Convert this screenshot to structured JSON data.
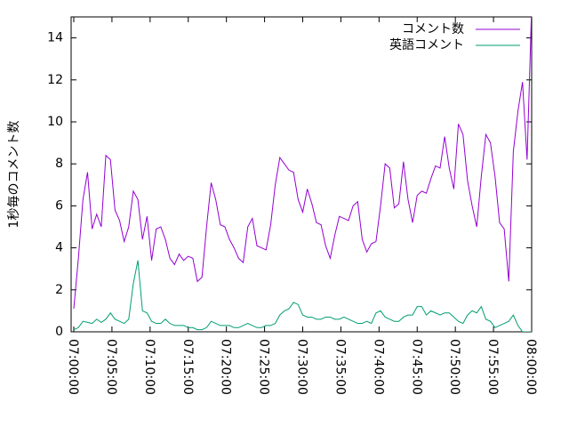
{
  "chart_data": {
    "type": "line",
    "ylabel": "1秒毎のコメント数",
    "x": [
      0,
      0.6,
      1.2,
      1.8,
      2.4,
      3,
      3.6,
      4.2,
      4.8,
      5.4,
      6,
      6.6,
      7.2,
      7.8,
      8.4,
      9,
      9.6,
      10.2,
      10.8,
      11.4,
      12,
      12.6,
      13.2,
      13.8,
      14.4,
      15,
      15.6,
      16.2,
      16.8,
      17.4,
      18,
      18.6,
      19.2,
      19.8,
      20.4,
      21,
      21.6,
      22.2,
      22.8,
      23.4,
      24,
      24.6,
      25.2,
      25.8,
      26.4,
      27,
      27.6,
      28.2,
      28.8,
      29.4,
      30,
      30.6,
      31.2,
      31.8,
      32.4,
      33,
      33.6,
      34.2,
      34.8,
      35.4,
      36,
      36.6,
      37.2,
      37.8,
      38.4,
      39,
      39.6,
      40.2,
      40.8,
      41.4,
      42,
      42.6,
      43.2,
      43.8,
      44.4,
      45,
      45.6,
      46.2,
      46.8,
      47.4,
      48,
      48.6,
      49.2,
      49.8,
      50.4,
      51,
      51.6,
      52.2,
      52.8,
      53.4,
      54,
      54.6,
      55.2,
      55.8,
      56.4,
      57,
      57.6,
      58.2,
      58.8,
      59.4,
      60
    ],
    "series": [
      {
        "name": "コメント数",
        "color": "#9400d3",
        "values": [
          1.1,
          3.5,
          6.3,
          7.6,
          4.9,
          5.6,
          5.0,
          8.4,
          8.2,
          5.8,
          5.3,
          4.3,
          5.0,
          6.7,
          6.3,
          4.4,
          5.5,
          3.4,
          4.9,
          5.0,
          4.4,
          3.5,
          3.2,
          3.7,
          3.4,
          3.6,
          3.5,
          2.4,
          2.6,
          5.0,
          7.1,
          6.3,
          5.1,
          5.0,
          4.4,
          4.0,
          3.5,
          3.3,
          5.0,
          5.4,
          4.1,
          4.0,
          3.9,
          5.1,
          7.0,
          8.3,
          8.0,
          7.7,
          7.6,
          6.3,
          5.7,
          6.8,
          6.1,
          5.2,
          5.1,
          4.1,
          3.5,
          4.6,
          5.5,
          5.4,
          5.3,
          6.0,
          6.2,
          4.4,
          3.8,
          4.2,
          4.3,
          6.0,
          8.0,
          7.8,
          5.9,
          6.1,
          8.1,
          6.3,
          5.2,
          6.5,
          6.7,
          6.6,
          7.3,
          7.9,
          7.8,
          9.3,
          7.8,
          6.8,
          9.9,
          9.4,
          7.2,
          6.0,
          5.0,
          7.4,
          9.4,
          9.0,
          7.4,
          5.2,
          4.9,
          2.4,
          8.6,
          10.5,
          11.9,
          8.2,
          15.5
        ]
      },
      {
        "name": "英語コメント",
        "color": "#009e73",
        "values": [
          0.1,
          0.2,
          0.5,
          0.45,
          0.4,
          0.6,
          0.45,
          0.6,
          0.9,
          0.6,
          0.5,
          0.4,
          0.6,
          2.3,
          3.4,
          1.0,
          0.9,
          0.5,
          0.4,
          0.4,
          0.6,
          0.4,
          0.3,
          0.3,
          0.3,
          0.2,
          0.2,
          0.1,
          0.1,
          0.2,
          0.5,
          0.4,
          0.3,
          0.3,
          0.3,
          0.2,
          0.2,
          0.3,
          0.4,
          0.3,
          0.2,
          0.2,
          0.3,
          0.3,
          0.4,
          0.8,
          1.0,
          1.1,
          1.4,
          1.3,
          0.8,
          0.7,
          0.7,
          0.6,
          0.6,
          0.7,
          0.7,
          0.6,
          0.6,
          0.7,
          0.6,
          0.5,
          0.4,
          0.4,
          0.5,
          0.4,
          0.9,
          1.0,
          0.7,
          0.6,
          0.5,
          0.5,
          0.7,
          0.8,
          0.8,
          1.2,
          1.2,
          0.8,
          1.0,
          0.9,
          0.8,
          0.9,
          0.9,
          0.7,
          0.5,
          0.4,
          0.8,
          1.0,
          0.9,
          1.2,
          0.6,
          0.5,
          0.2,
          0.3,
          0.4,
          0.5,
          0.8,
          0.3,
          0.0,
          0.0,
          0.0
        ]
      }
    ],
    "xlim": [
      -0.35,
      60
    ],
    "xticks": [
      {
        "value": 0,
        "label": "07:00:00"
      },
      {
        "value": 5,
        "label": "07:05:00"
      },
      {
        "value": 10,
        "label": "07:10:00"
      },
      {
        "value": 15,
        "label": "07:15:00"
      },
      {
        "value": 20,
        "label": "07:20:00"
      },
      {
        "value": 25,
        "label": "07:25:00"
      },
      {
        "value": 30,
        "label": "07:30:00"
      },
      {
        "value": 35,
        "label": "07:35:00"
      },
      {
        "value": 40,
        "label": "07:40:00"
      },
      {
        "value": 45,
        "label": "07:45:00"
      },
      {
        "value": 50,
        "label": "07:50:00"
      },
      {
        "value": 55,
        "label": "07:55:00"
      },
      {
        "value": 60,
        "label": "08:00:00"
      }
    ],
    "ylim": [
      0,
      15
    ],
    "yticks": [
      0,
      2,
      4,
      6,
      8,
      10,
      12,
      14
    ],
    "legend": "top-right"
  }
}
